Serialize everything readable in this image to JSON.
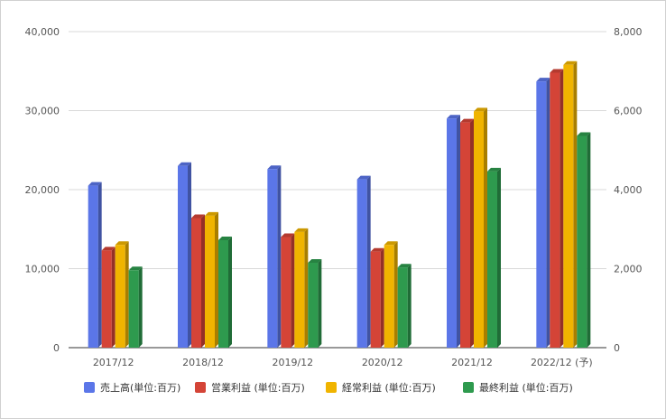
{
  "chart_data": {
    "type": "bar",
    "categories": [
      "2017/12",
      "2018/12",
      "2019/12",
      "2020/12",
      "2021/12",
      "2022/12 (予)"
    ],
    "left_axis": {
      "min": 0,
      "max": 40000,
      "ticks": [
        "0",
        "10,000",
        "20,000",
        "30,000",
        "40,000"
      ],
      "tick_values": [
        0,
        10000,
        20000,
        30000,
        40000
      ]
    },
    "right_axis": {
      "min": 0,
      "max": 8000,
      "ticks": [
        "0",
        "2,000",
        "4,000",
        "6,000",
        "8,000"
      ],
      "tick_values": [
        0,
        2000,
        4000,
        6000,
        8000
      ]
    },
    "series": [
      {
        "name": "売上高(単位:百万)",
        "axis": "left",
        "color": "#5b76e8",
        "values": [
          20500,
          23000,
          22600,
          21300,
          29000,
          33700
        ]
      },
      {
        "name": "営業利益 (単位:百万)",
        "axis": "right",
        "color": "#d44437",
        "values": [
          2460,
          3280,
          2800,
          2430,
          5700,
          6960
        ]
      },
      {
        "name": "経常利益 (単位:百万)",
        "axis": "right",
        "color": "#f0b400",
        "values": [
          2600,
          3340,
          2930,
          2600,
          5980,
          7160
        ]
      },
      {
        "name": "最終利益 (単位:百万)",
        "axis": "right",
        "color": "#2e9a4e",
        "values": [
          1960,
          2720,
          2150,
          2030,
          4460,
          5360
        ]
      }
    ],
    "grid": true,
    "legend_position": "bottom"
  }
}
